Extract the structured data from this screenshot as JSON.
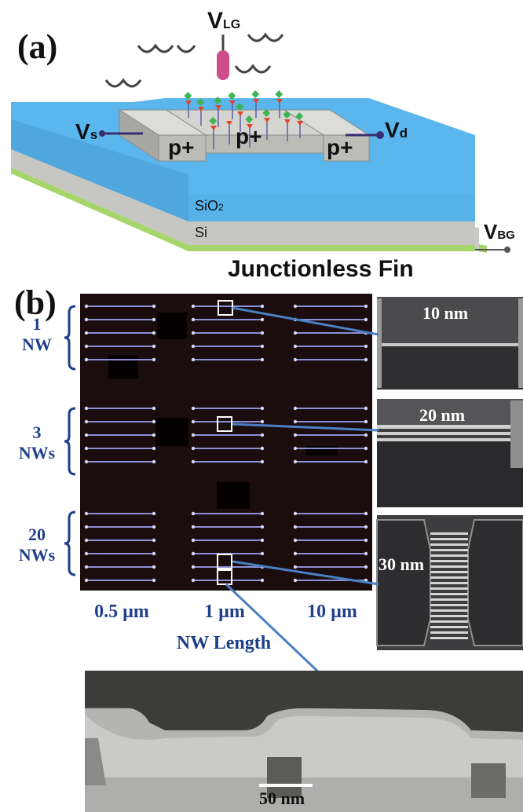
{
  "panel_a": {
    "label": "(a)",
    "vlg": "V",
    "vlg_sub": "LG",
    "vs": "V",
    "vs_sub": "s",
    "vd": "V",
    "vd_sub": "d",
    "vbg": "V",
    "vbg_sub": "BG",
    "p_left": "p+",
    "p_mid": "p+",
    "p_right": "p+",
    "sio2": "SiO",
    "sio2_sub": "2",
    "si": "Si",
    "caption": "Junctionless Fin"
  },
  "panel_b": {
    "label": "(b)",
    "rows": [
      {
        "num": "1",
        "unit": "NW"
      },
      {
        "num": "3",
        "unit": "NWs"
      },
      {
        "num": "20",
        "unit": "NWs"
      }
    ],
    "lengths": [
      "0.5 µm",
      "1 µm",
      "10 µm"
    ],
    "axis_label": "NW Length",
    "sem_scales": [
      "10 nm",
      "20 nm",
      "30 nm"
    ],
    "tem_scale": "50 nm"
  },
  "colors": {
    "blue_layer": "#58b4ea",
    "si_gray": "#c8c8c6",
    "green_base": "#a6d66b",
    "wafer_bg": "#1b0d0e",
    "label_blue": "#1f3f8a",
    "link_blue": "#4a7fc4",
    "gate_pink": "#cc4d88"
  }
}
